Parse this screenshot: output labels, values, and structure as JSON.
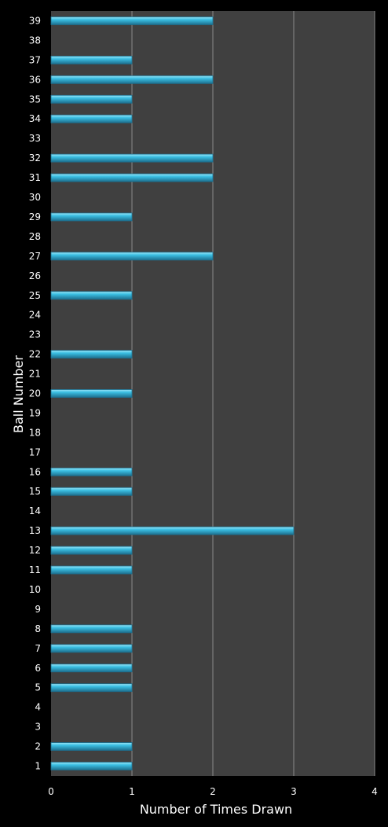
{
  "chart_data": {
    "type": "bar",
    "orientation": "horizontal",
    "title": "",
    "xlabel": "Number of Times Drawn",
    "ylabel": "Ball Number",
    "xlim": [
      0,
      4
    ],
    "x_ticks": [
      "0",
      "1",
      "2",
      "3",
      "4"
    ],
    "categories": [
      "1",
      "2",
      "3",
      "4",
      "5",
      "6",
      "7",
      "8",
      "9",
      "10",
      "11",
      "12",
      "13",
      "14",
      "15",
      "16",
      "17",
      "18",
      "19",
      "20",
      "21",
      "22",
      "23",
      "24",
      "25",
      "26",
      "27",
      "28",
      "29",
      "30",
      "31",
      "32",
      "33",
      "34",
      "35",
      "36",
      "37",
      "38",
      "39"
    ],
    "values": [
      1,
      1,
      0,
      0,
      1,
      1,
      1,
      1,
      0,
      0,
      1,
      1,
      3,
      0,
      1,
      1,
      0,
      0,
      0,
      1,
      0,
      1,
      0,
      0,
      1,
      0,
      2,
      0,
      1,
      0,
      2,
      2,
      0,
      1,
      1,
      2,
      1,
      0,
      2
    ],
    "grid": "vertical",
    "legend": "none",
    "colors": {
      "background": "#000000",
      "plot_area": "#404040",
      "bar": "#3bbfe3",
      "bar_light": "#9fe6f7",
      "bar_dark": "#1d6f8e",
      "gridline": "#8a8a8a",
      "text": "#ffffff"
    }
  }
}
